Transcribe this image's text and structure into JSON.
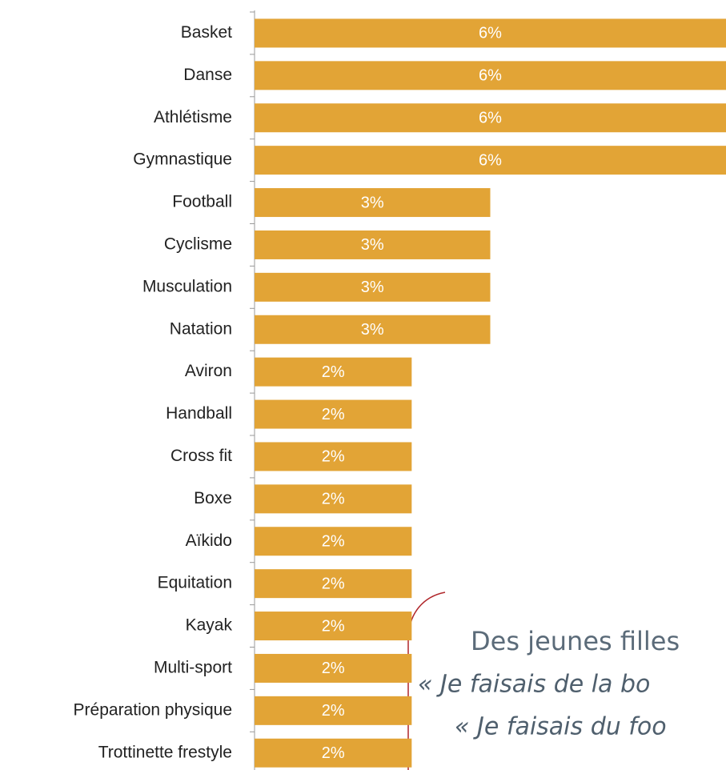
{
  "chart_data": {
    "type": "bar",
    "orientation": "horizontal",
    "categories": [
      "Basket",
      "Danse",
      "Athlétisme",
      "Gymnastique",
      "Football",
      "Cyclisme",
      "Musculation",
      "Natation",
      "Aviron",
      "Handball",
      "Cross fit",
      "Boxe",
      "Aïkido",
      "Equitation",
      "Kayak",
      "Multi-sport",
      "Préparation physique",
      "Trottinette frestyle"
    ],
    "values": [
      6,
      6,
      6,
      6,
      3,
      3,
      3,
      3,
      2,
      2,
      2,
      2,
      2,
      2,
      2,
      2,
      2,
      2
    ],
    "value_labels": [
      "6%",
      "6%",
      "6%",
      "6%",
      "3%",
      "3%",
      "3%",
      "3%",
      "2%",
      "2%",
      "2%",
      "2%",
      "2%",
      "2%",
      "2%",
      "2%",
      "2%",
      "2%"
    ],
    "color": "#e2a436",
    "xlim": [
      0,
      6
    ],
    "annotations": [
      "Des jeunes filles",
      "« Je faisais de la bo",
      "« Je faisais du foo"
    ]
  }
}
